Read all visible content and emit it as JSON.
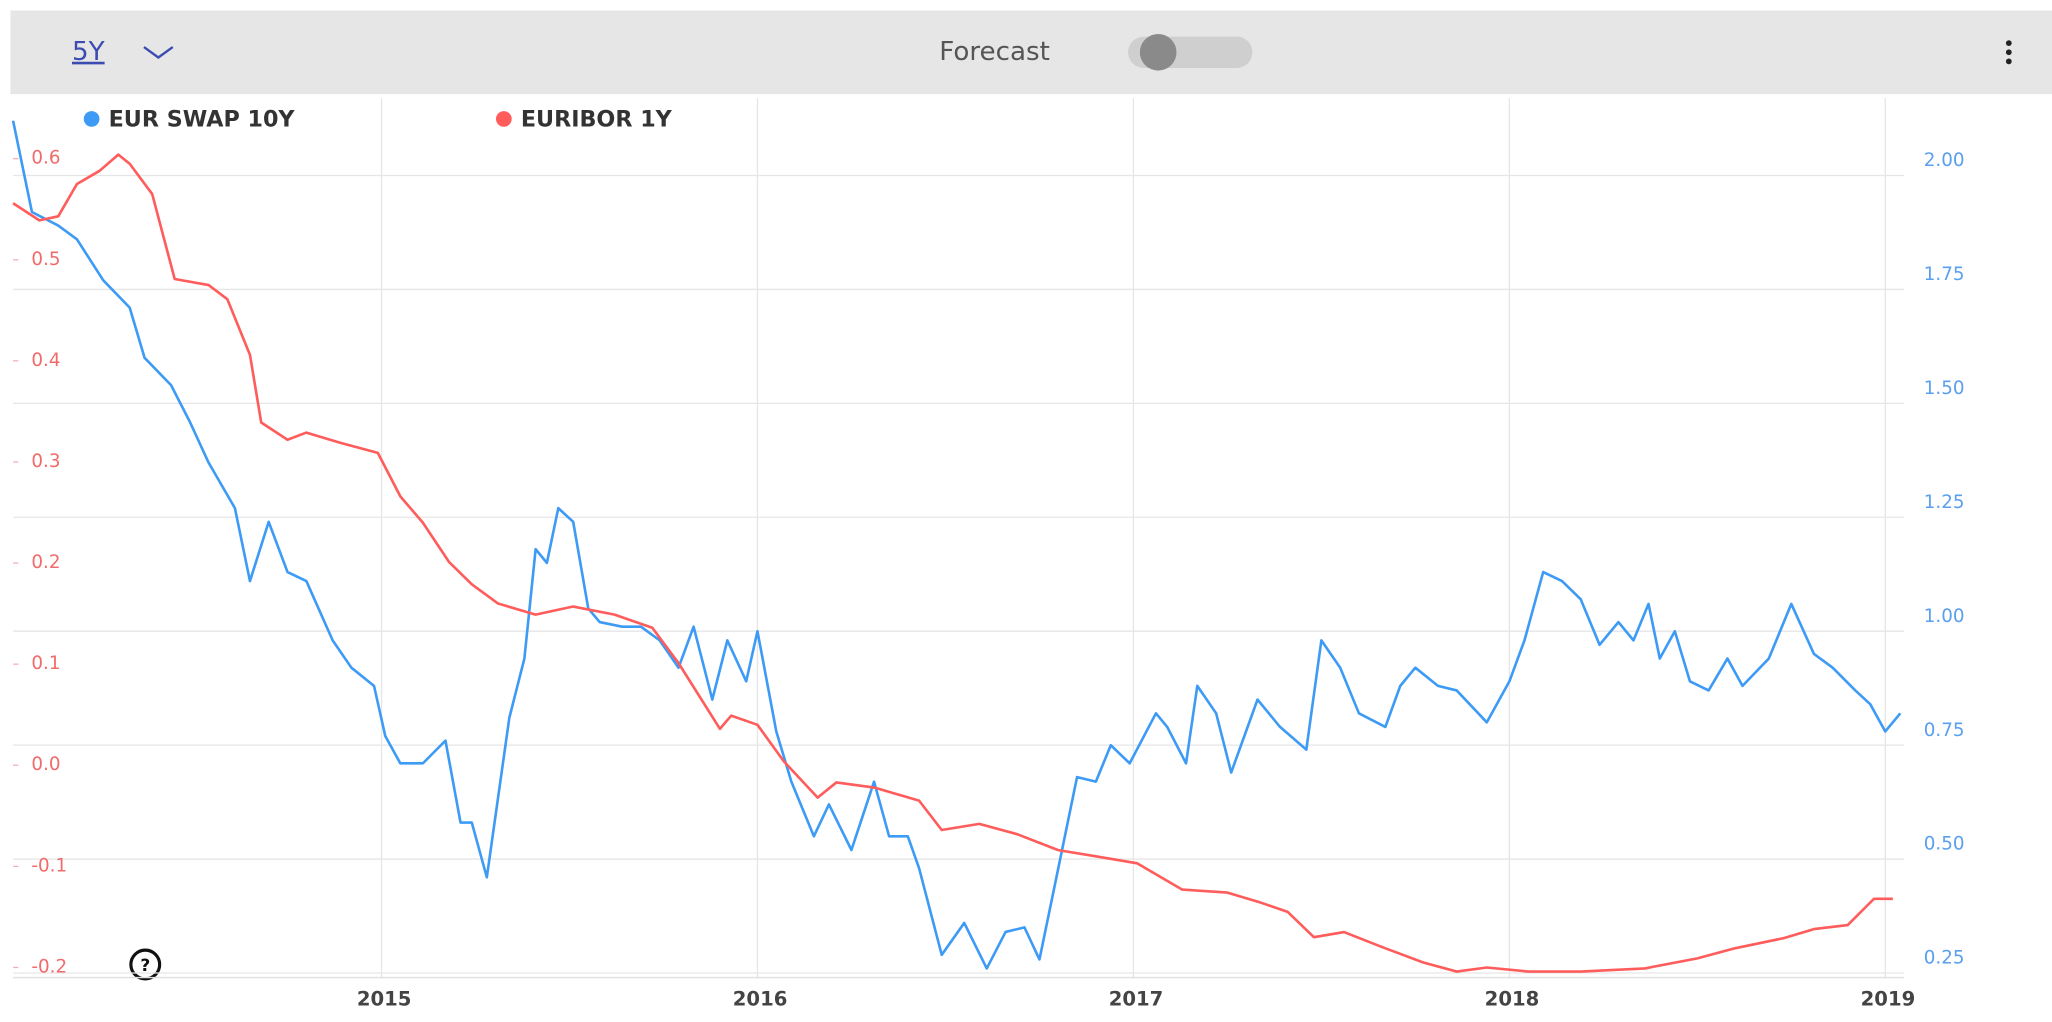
{
  "range": "5Y",
  "forecast_label": "Forecast",
  "chart_data": {
    "type": "line",
    "xlim": [
      2014.02,
      2019.05
    ],
    "xticks": [
      2015,
      2016,
      2017,
      2018,
      2019
    ],
    "ylim": [
      -0.21,
      0.66
    ],
    "yticks": [
      -0.2,
      -0.1,
      {
        "value": 0,
        "label": "0.0"
      },
      0.1,
      0.2,
      0.3,
      0.4,
      0.5,
      0.6
    ],
    "y2lim": [
      0.24,
      2.17
    ],
    "y2ticks": [
      0.25,
      {
        "value": 0.5,
        "label": "0.50"
      },
      0.75,
      {
        "value": 1,
        "label": "1.00"
      },
      1.25,
      {
        "value": 1.5,
        "label": "1.50"
      },
      1.75,
      {
        "value": 2,
        "label": "2.00"
      }
    ],
    "grid": true,
    "legend": "top-left",
    "series": [
      {
        "name": "EUR SWAP 10Y",
        "color": "#3d9bf5",
        "axis": "y2",
        "x": [
          2014.02,
          2014.07,
          2014.14,
          2014.19,
          2014.26,
          2014.33,
          2014.37,
          2014.44,
          2014.49,
          2014.54,
          2014.61,
          2014.65,
          2014.7,
          2014.75,
          2014.8,
          2014.87,
          2014.92,
          2014.98,
          2015.01,
          2015.05,
          2015.11,
          2015.17,
          2015.21,
          2015.24,
          2015.28,
          2015.34,
          2015.38,
          2015.41,
          2015.44,
          2015.47,
          2015.51,
          2015.55,
          2015.58,
          2015.64,
          2015.69,
          2015.74,
          2015.79,
          2015.83,
          2015.88,
          2015.92,
          2015.97,
          2016.0,
          2016.05,
          2016.09,
          2016.15,
          2016.19,
          2016.25,
          2016.31,
          2016.35,
          2016.4,
          2016.43,
          2016.49,
          2016.55,
          2016.61,
          2016.66,
          2016.71,
          2016.75,
          2016.79,
          2016.85,
          2016.9,
          2016.94,
          2016.99,
          2017.06,
          2017.09,
          2017.14,
          2017.17,
          2017.22,
          2017.26,
          2017.33,
          2017.39,
          2017.46,
          2017.5,
          2017.55,
          2017.6,
          2017.67,
          2017.71,
          2017.75,
          2017.81,
          2017.86,
          2017.94,
          2018.0,
          2018.04,
          2018.09,
          2018.14,
          2018.19,
          2018.24,
          2018.29,
          2018.33,
          2018.37,
          2018.4,
          2018.44,
          2018.48,
          2018.53,
          2018.58,
          2018.62,
          2018.69,
          2018.75,
          2018.81,
          2018.86,
          2018.92,
          2018.96,
          2019.0,
          2019.04
        ],
        "values": [
          2.12,
          1.92,
          1.89,
          1.86,
          1.77,
          1.71,
          1.6,
          1.54,
          1.46,
          1.37,
          1.27,
          1.11,
          1.24,
          1.13,
          1.11,
          0.98,
          0.92,
          0.88,
          0.77,
          0.71,
          0.71,
          0.76,
          0.58,
          0.58,
          0.46,
          0.81,
          0.94,
          1.18,
          1.15,
          1.27,
          1.24,
          1.05,
          1.02,
          1.01,
          1.01,
          0.98,
          0.92,
          1.01,
          0.85,
          0.98,
          0.89,
          1.0,
          0.78,
          0.67,
          0.55,
          0.62,
          0.52,
          0.67,
          0.55,
          0.55,
          0.48,
          0.29,
          0.36,
          0.26,
          0.34,
          0.35,
          0.28,
          0.44,
          0.68,
          0.67,
          0.75,
          0.71,
          0.82,
          0.79,
          0.71,
          0.88,
          0.82,
          0.69,
          0.85,
          0.79,
          0.74,
          0.98,
          0.92,
          0.82,
          0.79,
          0.88,
          0.92,
          0.88,
          0.87,
          0.8,
          0.89,
          0.98,
          1.13,
          1.11,
          1.07,
          0.97,
          1.02,
          0.98,
          1.06,
          0.94,
          1.0,
          0.89,
          0.87,
          0.94,
          0.88,
          0.94,
          1.06,
          0.95,
          0.92,
          0.87,
          0.84,
          0.78,
          0.82
        ]
      },
      {
        "name": "EURIBOR 1Y",
        "color": "#ff5c5c",
        "x": [
          2014.02,
          2014.09,
          2014.14,
          2014.19,
          2014.25,
          2014.3,
          2014.33,
          2014.39,
          2014.42,
          2014.45,
          2014.54,
          2014.59,
          2014.65,
          2014.68,
          2014.75,
          2014.8,
          2014.89,
          2014.99,
          2015.05,
          2015.11,
          2015.18,
          2015.24,
          2015.31,
          2015.41,
          2015.51,
          2015.62,
          2015.72,
          2015.79,
          2015.9,
          2015.93,
          2016.0,
          2016.07,
          2016.16,
          2016.21,
          2016.31,
          2016.43,
          2016.49,
          2016.59,
          2016.69,
          2016.8,
          2016.9,
          2017.01,
          2017.13,
          2017.25,
          2017.34,
          2017.41,
          2017.48,
          2017.56,
          2017.67,
          2017.77,
          2017.86,
          2017.94,
          2018.05,
          2018.19,
          2018.36,
          2018.5,
          2018.6,
          2018.73,
          2018.81,
          2018.9,
          2018.97,
          2019.02
        ],
        "values": [
          0.556,
          0.539,
          0.543,
          0.575,
          0.588,
          0.604,
          0.595,
          0.565,
          0.523,
          0.481,
          0.475,
          0.461,
          0.406,
          0.339,
          0.322,
          0.329,
          0.319,
          0.309,
          0.266,
          0.24,
          0.201,
          0.179,
          0.16,
          0.149,
          0.157,
          0.149,
          0.136,
          0.101,
          0.036,
          0.049,
          0.04,
          0.004,
          -0.032,
          -0.017,
          -0.022,
          -0.035,
          -0.064,
          -0.058,
          -0.068,
          -0.084,
          -0.09,
          -0.097,
          -0.123,
          -0.126,
          -0.136,
          -0.145,
          -0.17,
          -0.165,
          -0.181,
          -0.195,
          -0.204,
          -0.2,
          -0.204,
          -0.204,
          -0.201,
          -0.191,
          -0.181,
          -0.171,
          -0.162,
          -0.158,
          -0.132,
          -0.132
        ]
      }
    ]
  }
}
